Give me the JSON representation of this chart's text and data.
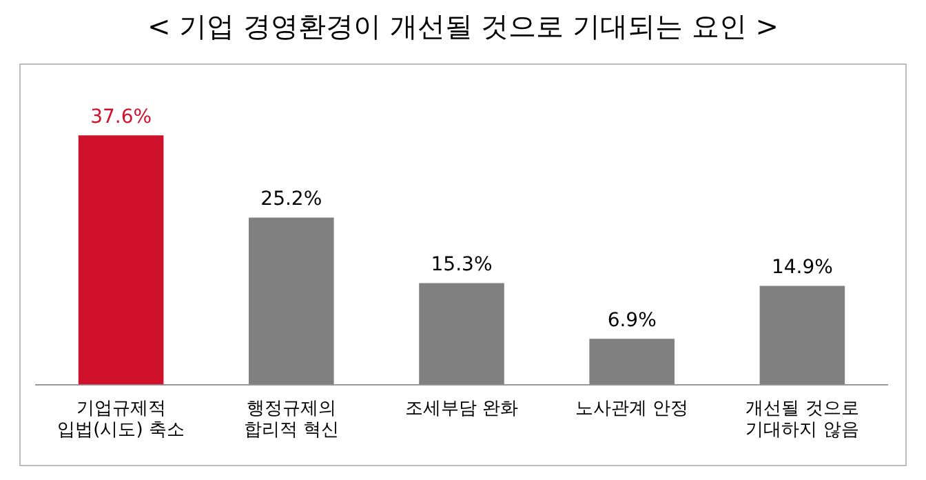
{
  "chart_data": {
    "type": "bar",
    "title": "< 기업 경영환경이 개선될 것으로 기대되는 요인 >",
    "categories": [
      "기업규제적\n입법(시도) 축소",
      "행정규제의\n합리적 혁신",
      "조세부담 완화",
      "노사관계 안정",
      "개선될 것으로\n기대하지 않음"
    ],
    "values": [
      37.6,
      25.2,
      15.3,
      6.9,
      14.9
    ],
    "colors": [
      "#d0112b",
      "#808080",
      "#808080",
      "#808080",
      "#808080"
    ],
    "value_labels": [
      "37.6%",
      "25.2%",
      "15.3%",
      "6.9%",
      "14.9%"
    ],
    "grid": false,
    "legend": false
  }
}
